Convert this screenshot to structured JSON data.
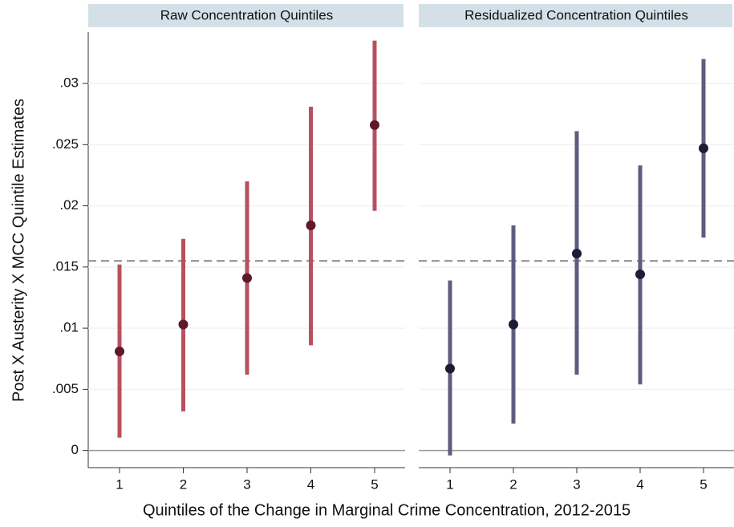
{
  "chart_data": {
    "type": "errorbar",
    "y_label": "Post X Austerity X MCC Quintile Estimates",
    "x_label": "Quintiles of the Change in Marginal Crime Concentration, 2012-2015",
    "ylim": [
      -0.0014,
      0.0342
    ],
    "yticks": [
      0,
      {
        "value": 0.005,
        "label": ".005"
      },
      {
        "value": 0.01,
        "label": ".01"
      },
      {
        "value": 0.015,
        "label": ".015"
      },
      {
        "value": 0.02,
        "label": ".02"
      },
      {
        "value": 0.025,
        "label": ".025"
      },
      {
        "value": 0.03,
        "label": ".03"
      }
    ],
    "grid": true,
    "reference_line": 0.0155,
    "panels": [
      {
        "title": "Raw Concentration Quintiles",
        "color": "#b8505f",
        "point_color": "#5e1a2a",
        "categories": [
          "1",
          "2",
          "3",
          "4",
          "5"
        ],
        "values": [
          0.0081,
          0.0103,
          0.0141,
          0.0184,
          0.0266
        ],
        "lower": [
          0.00105,
          0.0032,
          0.0062,
          0.0086,
          0.0196
        ],
        "upper": [
          0.0152,
          0.0173,
          0.022,
          0.0281,
          0.0335
        ]
      },
      {
        "title": "Residualized Concentration Quintiles",
        "color": "#5d5d80",
        "point_color": "#1c1c38",
        "categories": [
          "1",
          "2",
          "3",
          "4",
          "5"
        ],
        "values": [
          0.0067,
          0.0103,
          0.0161,
          0.0144,
          0.0247
        ],
        "lower": [
          -0.0004,
          0.0022,
          0.0062,
          0.0054,
          0.0174
        ],
        "upper": [
          0.0139,
          0.0184,
          0.0261,
          0.0233,
          0.032
        ]
      }
    ]
  }
}
